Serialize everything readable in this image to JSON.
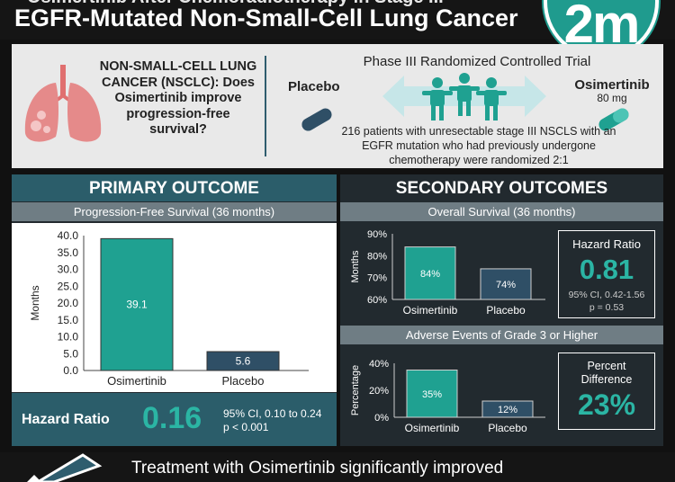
{
  "header": {
    "title_partial": "Osimertinib After Chemoradiotherapy in Stage III",
    "title": "EGFR-Mutated Non-Small-Cell Lung Cancer",
    "logo_text": "2m",
    "logo_color": "#1f9b8e"
  },
  "intro": {
    "question": "NON-SMALL-CELL LUNG CANCER (NSCLC): Does Osimertinib improve progression-free survival?",
    "trial_title": "Phase III Randomized Controlled Trial",
    "placebo_label": "Placebo",
    "osimertinib_label": "Osimertinib",
    "osimertinib_dose": "80 mg",
    "description": "216 patients with unresectable stage III NSCLS with an EGFR mutation who had previously undergone chemotherapy were randomized 2:1",
    "icons": [
      "lungs-icon",
      "placebo-pill-icon",
      "arrow-icon",
      "patients-icon",
      "osimertinib-pill-icon"
    ]
  },
  "primary": {
    "heading": "PRIMARY OUTCOME",
    "subheading": "Progression-Free Survival (36 months)",
    "hr_label": "Hazard Ratio",
    "hr_value": "0.16",
    "hr_ci": "95% CI, 0.10 to 0.24",
    "hr_p": "p < 0.001"
  },
  "secondary": {
    "heading": "SECONDARY OUTCOMES",
    "os_subheading": "Overall Survival (36 months)",
    "os_hr_label": "Hazard Ratio",
    "os_hr_value": "0.81",
    "os_hr_ci": "95% CI, 0.42-1.56",
    "os_hr_p": "p = 0.53",
    "ae_subheading": "Adverse Events of Grade 3 or Higher",
    "ae_diff_label": "Percent Difference",
    "ae_diff_value": "23%"
  },
  "footer": {
    "text": "Treatment with Osimertinib significantly improved"
  },
  "colors": {
    "osimertinib": "#1fa191",
    "placebo": "#2f4f66",
    "accent": "#2bb5a4"
  },
  "chart_data": [
    {
      "type": "bar",
      "categories": [
        "Osimertinib",
        "Placebo"
      ],
      "values": [
        39.1,
        5.6
      ],
      "value_labels": [
        "39.1",
        "5.6"
      ],
      "ylabel": "Months",
      "ylim": [
        0,
        40
      ],
      "yticks": [
        "0.0",
        "5.0",
        "10.0",
        "15.0",
        "20.0",
        "25.0",
        "30.0",
        "35.0",
        "40.0"
      ]
    },
    {
      "type": "bar",
      "categories": [
        "Osimertinib",
        "Placebo"
      ],
      "values": [
        84,
        74
      ],
      "value_labels": [
        "84%",
        "74%"
      ],
      "ylabel": "Months",
      "ylim": [
        60,
        90
      ],
      "yticks": [
        "60%",
        "70%",
        "80%",
        "90%"
      ]
    },
    {
      "type": "bar",
      "categories": [
        "Osimertinib",
        "Placebo"
      ],
      "values": [
        35,
        12
      ],
      "value_labels": [
        "35%",
        "12%"
      ],
      "ylabel": "Percentage",
      "ylim": [
        0,
        40
      ],
      "yticks": [
        "0%",
        "20%",
        "40%"
      ]
    }
  ]
}
